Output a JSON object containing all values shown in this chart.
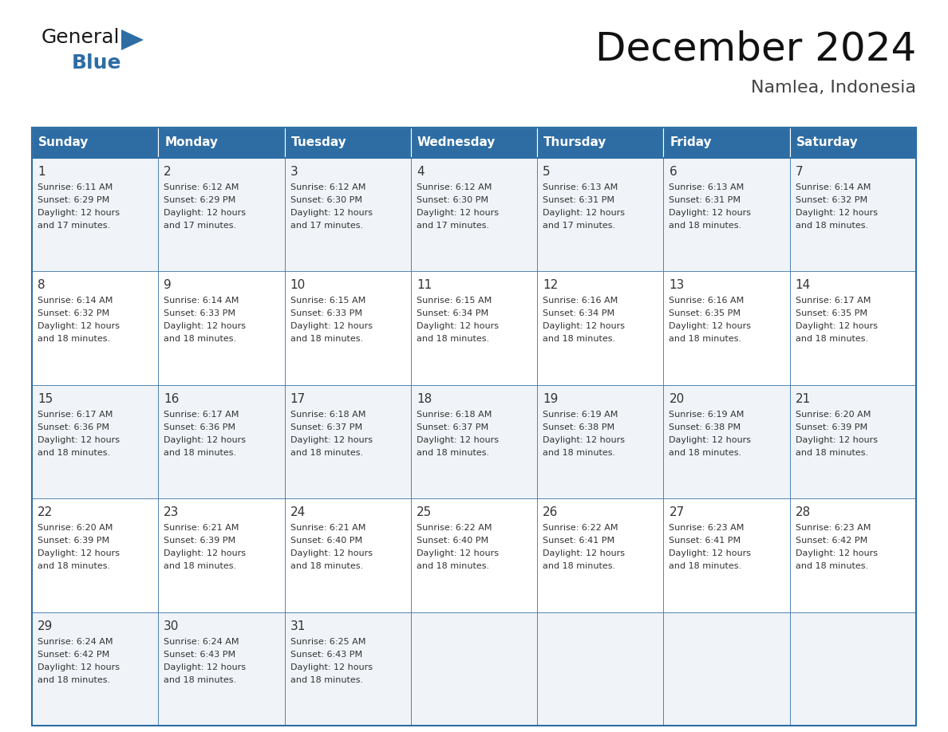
{
  "title": "December 2024",
  "subtitle": "Namlea, Indonesia",
  "header_bg": "#2E6DA4",
  "header_text": "#FFFFFF",
  "day_names": [
    "Sunday",
    "Monday",
    "Tuesday",
    "Wednesday",
    "Thursday",
    "Friday",
    "Saturday"
  ],
  "cell_bg_even": "#FFFFFF",
  "cell_bg_odd": "#F0F4F8",
  "border_color": "#2E6DA4",
  "text_color": "#333333",
  "days": [
    {
      "date": 1,
      "col": 0,
      "row": 0,
      "sunrise": "6:11 AM",
      "sunset": "6:29 PM",
      "daylight": "12 hours and 17 minutes."
    },
    {
      "date": 2,
      "col": 1,
      "row": 0,
      "sunrise": "6:12 AM",
      "sunset": "6:29 PM",
      "daylight": "12 hours and 17 minutes."
    },
    {
      "date": 3,
      "col": 2,
      "row": 0,
      "sunrise": "6:12 AM",
      "sunset": "6:30 PM",
      "daylight": "12 hours and 17 minutes."
    },
    {
      "date": 4,
      "col": 3,
      "row": 0,
      "sunrise": "6:12 AM",
      "sunset": "6:30 PM",
      "daylight": "12 hours and 17 minutes."
    },
    {
      "date": 5,
      "col": 4,
      "row": 0,
      "sunrise": "6:13 AM",
      "sunset": "6:31 PM",
      "daylight": "12 hours and 17 minutes."
    },
    {
      "date": 6,
      "col": 5,
      "row": 0,
      "sunrise": "6:13 AM",
      "sunset": "6:31 PM",
      "daylight": "12 hours and 18 minutes."
    },
    {
      "date": 7,
      "col": 6,
      "row": 0,
      "sunrise": "6:14 AM",
      "sunset": "6:32 PM",
      "daylight": "12 hours and 18 minutes."
    },
    {
      "date": 8,
      "col": 0,
      "row": 1,
      "sunrise": "6:14 AM",
      "sunset": "6:32 PM",
      "daylight": "12 hours and 18 minutes."
    },
    {
      "date": 9,
      "col": 1,
      "row": 1,
      "sunrise": "6:14 AM",
      "sunset": "6:33 PM",
      "daylight": "12 hours and 18 minutes."
    },
    {
      "date": 10,
      "col": 2,
      "row": 1,
      "sunrise": "6:15 AM",
      "sunset": "6:33 PM",
      "daylight": "12 hours and 18 minutes."
    },
    {
      "date": 11,
      "col": 3,
      "row": 1,
      "sunrise": "6:15 AM",
      "sunset": "6:34 PM",
      "daylight": "12 hours and 18 minutes."
    },
    {
      "date": 12,
      "col": 4,
      "row": 1,
      "sunrise": "6:16 AM",
      "sunset": "6:34 PM",
      "daylight": "12 hours and 18 minutes."
    },
    {
      "date": 13,
      "col": 5,
      "row": 1,
      "sunrise": "6:16 AM",
      "sunset": "6:35 PM",
      "daylight": "12 hours and 18 minutes."
    },
    {
      "date": 14,
      "col": 6,
      "row": 1,
      "sunrise": "6:17 AM",
      "sunset": "6:35 PM",
      "daylight": "12 hours and 18 minutes."
    },
    {
      "date": 15,
      "col": 0,
      "row": 2,
      "sunrise": "6:17 AM",
      "sunset": "6:36 PM",
      "daylight": "12 hours and 18 minutes."
    },
    {
      "date": 16,
      "col": 1,
      "row": 2,
      "sunrise": "6:17 AM",
      "sunset": "6:36 PM",
      "daylight": "12 hours and 18 minutes."
    },
    {
      "date": 17,
      "col": 2,
      "row": 2,
      "sunrise": "6:18 AM",
      "sunset": "6:37 PM",
      "daylight": "12 hours and 18 minutes."
    },
    {
      "date": 18,
      "col": 3,
      "row": 2,
      "sunrise": "6:18 AM",
      "sunset": "6:37 PM",
      "daylight": "12 hours and 18 minutes."
    },
    {
      "date": 19,
      "col": 4,
      "row": 2,
      "sunrise": "6:19 AM",
      "sunset": "6:38 PM",
      "daylight": "12 hours and 18 minutes."
    },
    {
      "date": 20,
      "col": 5,
      "row": 2,
      "sunrise": "6:19 AM",
      "sunset": "6:38 PM",
      "daylight": "12 hours and 18 minutes."
    },
    {
      "date": 21,
      "col": 6,
      "row": 2,
      "sunrise": "6:20 AM",
      "sunset": "6:39 PM",
      "daylight": "12 hours and 18 minutes."
    },
    {
      "date": 22,
      "col": 0,
      "row": 3,
      "sunrise": "6:20 AM",
      "sunset": "6:39 PM",
      "daylight": "12 hours and 18 minutes."
    },
    {
      "date": 23,
      "col": 1,
      "row": 3,
      "sunrise": "6:21 AM",
      "sunset": "6:39 PM",
      "daylight": "12 hours and 18 minutes."
    },
    {
      "date": 24,
      "col": 2,
      "row": 3,
      "sunrise": "6:21 AM",
      "sunset": "6:40 PM",
      "daylight": "12 hours and 18 minutes."
    },
    {
      "date": 25,
      "col": 3,
      "row": 3,
      "sunrise": "6:22 AM",
      "sunset": "6:40 PM",
      "daylight": "12 hours and 18 minutes."
    },
    {
      "date": 26,
      "col": 4,
      "row": 3,
      "sunrise": "6:22 AM",
      "sunset": "6:41 PM",
      "daylight": "12 hours and 18 minutes."
    },
    {
      "date": 27,
      "col": 5,
      "row": 3,
      "sunrise": "6:23 AM",
      "sunset": "6:41 PM",
      "daylight": "12 hours and 18 minutes."
    },
    {
      "date": 28,
      "col": 6,
      "row": 3,
      "sunrise": "6:23 AM",
      "sunset": "6:42 PM",
      "daylight": "12 hours and 18 minutes."
    },
    {
      "date": 29,
      "col": 0,
      "row": 4,
      "sunrise": "6:24 AM",
      "sunset": "6:42 PM",
      "daylight": "12 hours and 18 minutes."
    },
    {
      "date": 30,
      "col": 1,
      "row": 4,
      "sunrise": "6:24 AM",
      "sunset": "6:43 PM",
      "daylight": "12 hours and 18 minutes."
    },
    {
      "date": 31,
      "col": 2,
      "row": 4,
      "sunrise": "6:25 AM",
      "sunset": "6:43 PM",
      "daylight": "12 hours and 18 minutes."
    }
  ],
  "num_rows": 5,
  "logo_general_color": "#1a1a1a",
  "logo_blue_color": "#2E6DA4",
  "logo_triangle_color": "#2E6DA4",
  "title_fontsize": 36,
  "subtitle_fontsize": 16,
  "header_fontsize": 11,
  "date_fontsize": 11,
  "info_fontsize": 8
}
